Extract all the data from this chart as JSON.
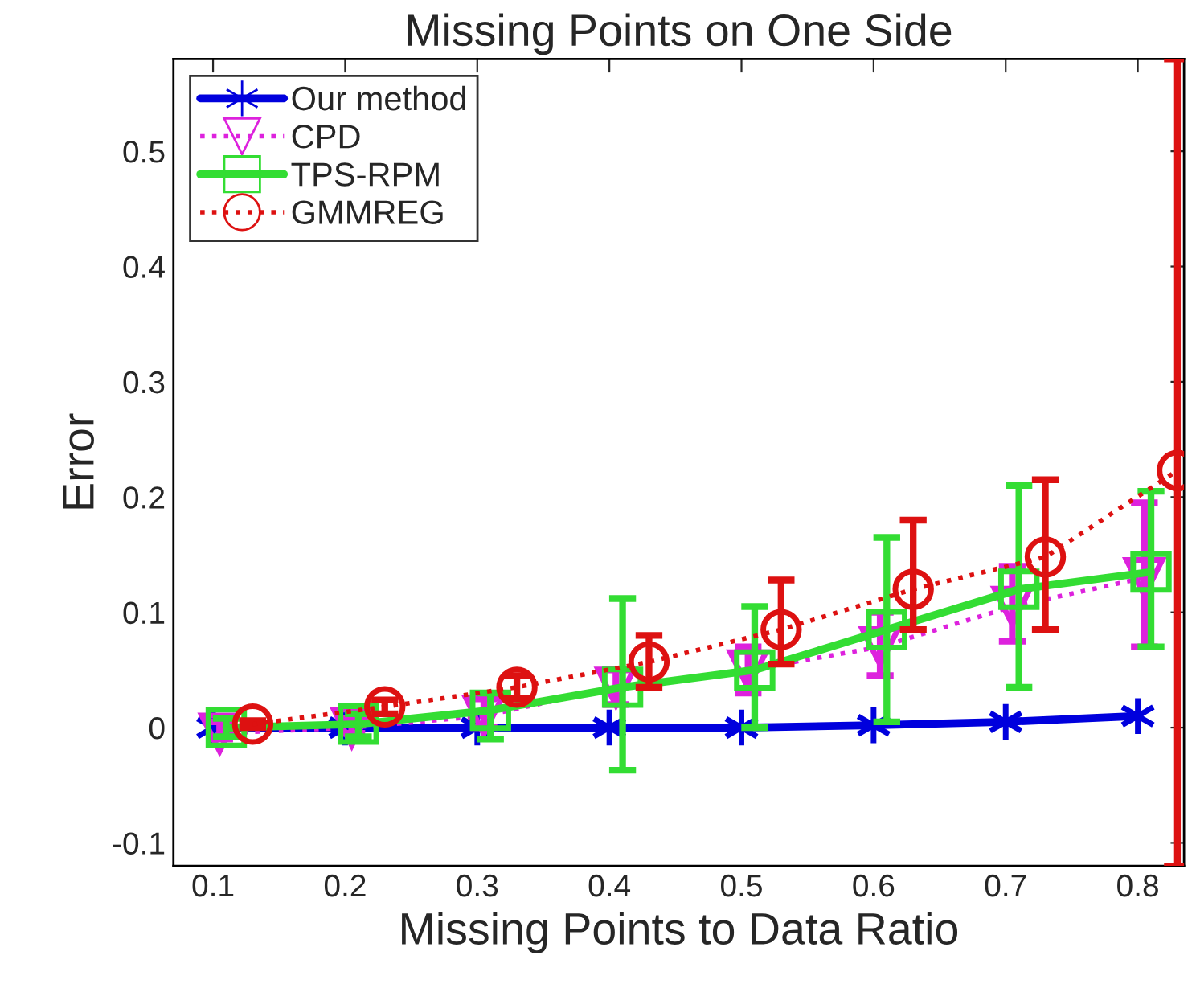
{
  "chart_data": {
    "type": "line",
    "title": "Missing Points on One Side",
    "xlabel": "Missing Points to Data Ratio",
    "ylabel": "Error",
    "xlim": [
      0.07,
      0.835
    ],
    "xticks": [
      0.1,
      0.2,
      0.3,
      0.4,
      0.5,
      0.6,
      0.7,
      0.8
    ],
    "ylim": [
      -0.12,
      0.58
    ],
    "yticks": [
      -0.1,
      0,
      0.1,
      0.2,
      0.3,
      0.4,
      0.5
    ],
    "grid": false,
    "legend": "top left",
    "series": [
      {
        "name": "Our method",
        "color": "#0000dd",
        "marker": "cross",
        "line_style": "solid",
        "x": [
          0.1,
          0.2,
          0.3,
          0.4,
          0.5,
          0.6,
          0.7,
          0.8
        ],
        "values": [
          0,
          0,
          0,
          0,
          0,
          0.002,
          0.005,
          0.01
        ]
      },
      {
        "name": "CPD",
        "color": "#dd22dd",
        "marker": "triangle",
        "line_style": "dotted",
        "x": [
          0.105,
          0.205,
          0.305,
          0.405,
          0.505,
          0.605,
          0.705,
          0.805
        ],
        "values": [
          -0.005,
          0,
          0.01,
          0.035,
          0.05,
          0.07,
          0.105,
          0.13
        ],
        "errors": [
          [
            -0.01,
            0.005
          ],
          [
            -0.005,
            0.008
          ],
          [
            0.0,
            0.025
          ],
          [
            0.02,
            0.05
          ],
          [
            0.03,
            0.07
          ],
          [
            0.045,
            0.1
          ],
          [
            0.075,
            0.14
          ],
          [
            0.07,
            0.195
          ]
        ]
      },
      {
        "name": "TPS-RPM",
        "color": "#33dd33",
        "marker": "square",
        "line_style": "solid",
        "x": [
          0.11,
          0.21,
          0.31,
          0.41,
          0.51,
          0.61,
          0.71,
          0.81
        ],
        "values": [
          0,
          0.003,
          0.015,
          0.035,
          0.05,
          0.085,
          0.12,
          0.135
        ],
        "errors": [
          [
            -0.008,
            0.008
          ],
          [
            -0.008,
            0.012
          ],
          [
            -0.01,
            0.03
          ],
          [
            -0.037,
            0.112
          ],
          [
            0.0,
            0.105
          ],
          [
            0.005,
            0.165
          ],
          [
            0.035,
            0.21
          ],
          [
            0.07,
            0.205
          ]
        ]
      },
      {
        "name": "GMMREG",
        "color": "#dd1111",
        "marker": "circle",
        "line_style": "dotted",
        "x": [
          0.13,
          0.23,
          0.33,
          0.43,
          0.53,
          0.63,
          0.73,
          0.83
        ],
        "values": [
          0.003,
          0.018,
          0.035,
          0.057,
          0.085,
          0.12,
          0.148,
          0.223
        ],
        "errors": [
          [
            0.0,
            0.006
          ],
          [
            0.012,
            0.024
          ],
          [
            0.025,
            0.045
          ],
          [
            0.035,
            0.08
          ],
          [
            0.055,
            0.128
          ],
          [
            0.085,
            0.18
          ],
          [
            0.085,
            0.215
          ],
          [
            -0.12,
            0.58
          ]
        ]
      }
    ]
  }
}
